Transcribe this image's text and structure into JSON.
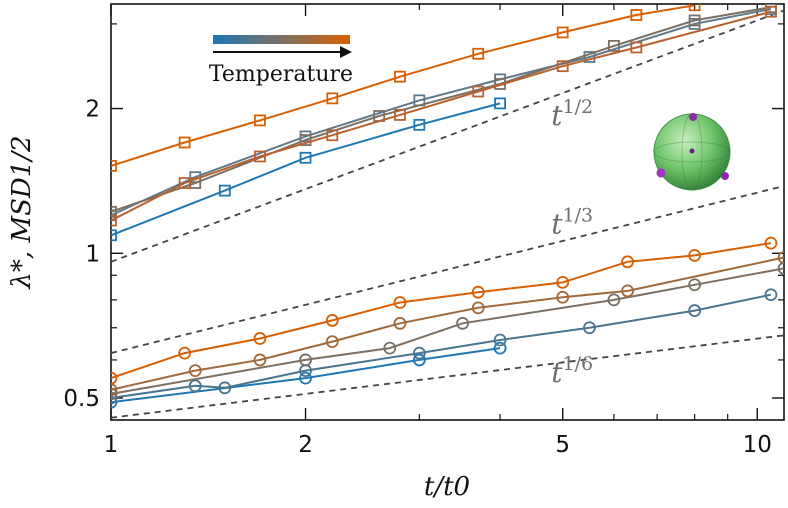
{
  "chart_data": {
    "type": "line",
    "xscale": "log",
    "yscale": "log",
    "xlim": [
      1,
      11
    ],
    "ylim": [
      0.45,
      3.3
    ],
    "xlabel": "t/t0",
    "ylabel": "λ*, MSD1/2",
    "xticks": [
      1,
      2,
      5,
      10
    ],
    "xtick_labels": [
      "1",
      "2",
      "5",
      "10"
    ],
    "yticks": [
      0.5,
      1,
      2
    ],
    "ytick_labels": [
      "0.5",
      "1",
      "2"
    ],
    "colorbar_label": "Temperature",
    "colorbar_colors": [
      "#1f77b4",
      "#d95f02"
    ],
    "annotations": [
      {
        "text": "t1/2",
        "x": 4.8,
        "y": 1.85
      },
      {
        "text": "t1/3",
        "x": 4.8,
        "y": 1.1
      },
      {
        "text": "t1/6",
        "x": 4.8,
        "y": 0.54
      }
    ],
    "reference_lines": [
      {
        "name": "t1/2",
        "points": [
          [
            1,
            0.96
          ],
          [
            11,
            3.2
          ]
        ]
      },
      {
        "name": "t1/3",
        "points": [
          [
            1,
            0.62
          ],
          [
            11,
            1.38
          ]
        ]
      },
      {
        "name": "t1/6",
        "points": [
          [
            1,
            0.455
          ],
          [
            11,
            0.675
          ]
        ]
      }
    ],
    "square_series": [
      {
        "color": "#1f77b4",
        "x": [
          1,
          1.5,
          2,
          3,
          4
        ],
        "y": [
          1.09,
          1.35,
          1.58,
          1.85,
          2.05
        ]
      },
      {
        "color": "#5f7a8c",
        "x": [
          1,
          1.35,
          2,
          3,
          4,
          5.5,
          8,
          10.5
        ],
        "y": [
          1.2,
          1.44,
          1.75,
          2.08,
          2.3,
          2.56,
          3.0,
          3.22
        ]
      },
      {
        "color": "#7c7064",
        "x": [
          1,
          1.35,
          2,
          2.6,
          4,
          6,
          8,
          10.5
        ],
        "y": [
          1.22,
          1.4,
          1.72,
          1.93,
          2.25,
          2.7,
          3.05,
          3.25
        ]
      },
      {
        "color": "#b9622f",
        "x": [
          1,
          1.3,
          1.7,
          2.2,
          2.8,
          3.7,
          5,
          6.5,
          10.5
        ],
        "y": [
          1.17,
          1.4,
          1.59,
          1.76,
          1.94,
          2.17,
          2.45,
          2.68,
          3.18
        ]
      },
      {
        "color": "#d95f02",
        "x": [
          1,
          1.3,
          1.7,
          2.2,
          2.8,
          3.7,
          5,
          6.5,
          8
        ],
        "y": [
          1.52,
          1.7,
          1.89,
          2.1,
          2.33,
          2.6,
          2.88,
          3.13,
          3.28
        ]
      }
    ],
    "circle_series": [
      {
        "color": "#1f77b4",
        "x": [
          1,
          2,
          3,
          4
        ],
        "y": [
          0.49,
          0.55,
          0.6,
          0.635
        ]
      },
      {
        "color": "#4a7590",
        "x": [
          1,
          1.35,
          1.5,
          2,
          3,
          4,
          5.5,
          8,
          10.5
        ],
        "y": [
          0.5,
          0.53,
          0.525,
          0.57,
          0.62,
          0.66,
          0.7,
          0.76,
          0.82
        ]
      },
      {
        "color": "#7c7064",
        "x": [
          1,
          2,
          2.7,
          3.5,
          6,
          8,
          11
        ],
        "y": [
          0.51,
          0.6,
          0.635,
          0.715,
          0.8,
          0.86,
          0.93
        ]
      },
      {
        "color": "#a06a3c",
        "x": [
          1,
          1.35,
          1.7,
          2.2,
          2.8,
          3.7,
          5,
          6.3,
          11
        ],
        "y": [
          0.52,
          0.57,
          0.6,
          0.655,
          0.715,
          0.77,
          0.81,
          0.835,
          0.98
        ]
      },
      {
        "color": "#d95f02",
        "x": [
          1,
          1.3,
          1.7,
          2.2,
          2.8,
          3.7,
          5,
          6.3,
          8,
          10.5
        ],
        "y": [
          0.55,
          0.62,
          0.665,
          0.725,
          0.79,
          0.83,
          0.87,
          0.96,
          0.99,
          1.05
        ]
      }
    ]
  }
}
